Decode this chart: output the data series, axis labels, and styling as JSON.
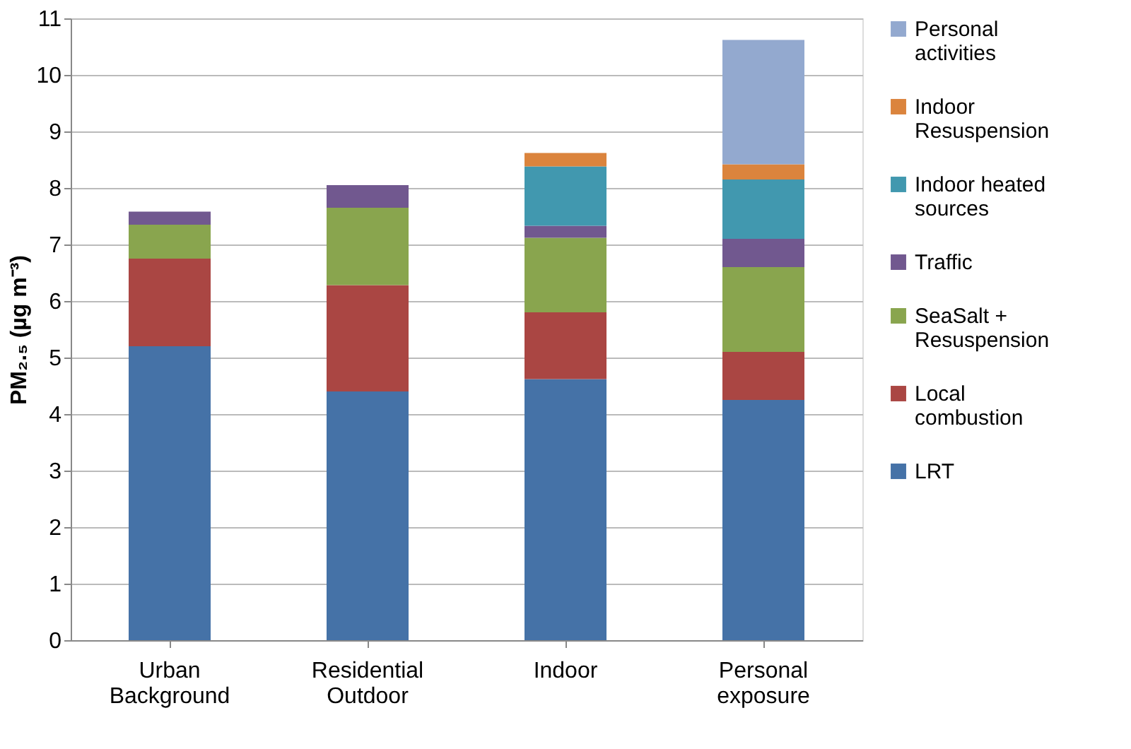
{
  "chart_data": {
    "type": "bar",
    "stacked": true,
    "ylabel": "PM₂.₅ (µg m⁻³)",
    "categories": [
      "Urban Background",
      "Residential Outdoor",
      "Indoor",
      "Personal exposure"
    ],
    "series": [
      {
        "name": "LRT",
        "color": "#4572a7",
        "values": [
          5.2,
          4.4,
          4.62,
          4.25
        ]
      },
      {
        "name": "Local combustion",
        "color": "#aa4643",
        "values": [
          1.55,
          1.88,
          1.18,
          0.85
        ]
      },
      {
        "name": "SeaSalt + Resuspension",
        "color": "#89a54e",
        "values": [
          0.6,
          1.37,
          1.32,
          1.5
        ]
      },
      {
        "name": "Traffic",
        "color": "#71588f",
        "values": [
          0.23,
          0.4,
          0.21,
          0.5
        ]
      },
      {
        "name": "Indoor heated sources",
        "color": "#4198af",
        "values": [
          null,
          null,
          1.05,
          1.05
        ]
      },
      {
        "name": "Indoor Resuspension",
        "color": "#db843d",
        "values": [
          null,
          null,
          0.24,
          0.27
        ]
      },
      {
        "name": "Personal activities",
        "color": "#93a9cf",
        "values": [
          null,
          null,
          null,
          2.2
        ]
      }
    ],
    "ylim": [
      0,
      11
    ],
    "yticks": [
      0,
      1,
      2,
      3,
      4,
      5,
      6,
      7,
      8,
      9,
      10,
      11
    ],
    "grid": "y",
    "legend": "right"
  }
}
